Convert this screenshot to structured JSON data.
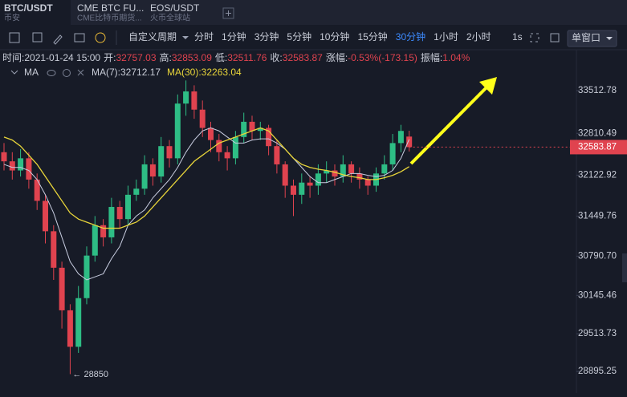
{
  "tabs": [
    {
      "title": "BTC/USDT",
      "sub": "币安"
    },
    {
      "title": "CME BTC FU...",
      "sub": "CME比特币期货..."
    },
    {
      "title": "EOS/USDT",
      "sub": "火币全球站"
    }
  ],
  "toolbar": {
    "custom": "自定义周期",
    "periods": [
      "分时",
      "1分钟",
      "3分钟",
      "5分钟",
      "10分钟",
      "15分钟",
      "30分钟",
      "1小时",
      "2小时"
    ],
    "active": 6,
    "speed": "1s",
    "window": "单窗口"
  },
  "info": [
    {
      "label": "时间:",
      "value": "2021-01-24 15:00"
    },
    {
      "label": "开:",
      "value": "32757.03"
    },
    {
      "label": "高:",
      "value": "32853.09"
    },
    {
      "label": "低:",
      "value": "32511.76"
    },
    {
      "label": "收:",
      "value": "32583.87"
    },
    {
      "label": "涨幅:",
      "value": "-0.53%(-173.15)"
    },
    {
      "label": "振幅:",
      "value": "1.04%"
    }
  ],
  "ma": {
    "title": "MA",
    "ma7": "MA(7):32712.17",
    "ma30": "MA(30):32263.04"
  },
  "chart_data": {
    "type": "candlestick",
    "annotation": "← 28850",
    "up_color": "#2ebd85",
    "down_color": "#e0434f",
    "ylim": [
      28540.15,
      33684.25
    ],
    "yticks": [
      33512.78,
      32810.49,
      32122.92,
      31449.76,
      {
        "value": 30790.7,
        "label": "30790.70"
      },
      30145.46,
      29513.73,
      28895.25
    ],
    "open": [
      32500,
      32350,
      32200,
      32400,
      32050,
      31700,
      31200,
      30600,
      29900,
      29300,
      30100,
      30800,
      31300,
      31100,
      31600,
      31400,
      31800,
      31900,
      32300,
      32100,
      32600,
      32400,
      33300,
      33500,
      33200,
      32900,
      32700,
      32500,
      32400,
      32750,
      33000,
      32850,
      32900,
      32600,
      32300,
      31950,
      31800,
      32000,
      31950,
      32150,
      32200,
      32100,
      32300,
      32150,
      32050,
      31950,
      32150,
      32300,
      32650,
      32757.03
    ],
    "high": [
      32650,
      32500,
      32550,
      32500,
      32150,
      31800,
      31300,
      30700,
      30000,
      30300,
      30950,
      31450,
      31400,
      31750,
      31700,
      31950,
      32050,
      32450,
      32400,
      32750,
      32700,
      33450,
      33680,
      33600,
      33350,
      33000,
      32800,
      32600,
      32850,
      33150,
      33100,
      33000,
      32950,
      32700,
      32350,
      32050,
      32150,
      32100,
      32300,
      32350,
      32300,
      32450,
      32350,
      32250,
      32100,
      32250,
      32450,
      32800,
      32950,
      32853.09
    ],
    "low": [
      32200,
      32050,
      32100,
      31900,
      31550,
      31000,
      30400,
      29600,
      28850,
      29200,
      30000,
      30700,
      30950,
      31000,
      31250,
      31300,
      31700,
      31800,
      31950,
      32000,
      32250,
      32300,
      33100,
      33050,
      32750,
      32500,
      32350,
      32200,
      32300,
      32650,
      32700,
      32700,
      32450,
      32150,
      31750,
      31450,
      31650,
      31750,
      31800,
      32000,
      31950,
      32000,
      32000,
      31900,
      31800,
      31850,
      32050,
      32200,
      32500,
      32511.76
    ],
    "close": [
      32350,
      32200,
      32400,
      32050,
      31700,
      31200,
      30600,
      29900,
      29300,
      30100,
      30800,
      31300,
      31100,
      31600,
      31400,
      31800,
      31900,
      32300,
      32100,
      32600,
      32400,
      33300,
      33500,
      33200,
      32900,
      32700,
      32500,
      32400,
      32750,
      33000,
      32850,
      32900,
      32600,
      32300,
      31950,
      31800,
      32000,
      31950,
      32150,
      32200,
      32100,
      32300,
      32150,
      32050,
      31950,
      32150,
      32300,
      32650,
      32850,
      32583.87
    ],
    "series": [
      {
        "name": "MA(7)",
        "color": "#c8cde0",
        "values": [
          32300,
          32250,
          32250,
          32200,
          32050,
          31800,
          31500,
          31100,
          30700,
          30500,
          30400,
          30450,
          30500,
          30750,
          30950,
          31300,
          31450,
          31550,
          31750,
          31900,
          32050,
          32250,
          32500,
          32700,
          32850,
          32900,
          32850,
          32750,
          32650,
          32650,
          32700,
          32720,
          32720,
          32650,
          32550,
          32400,
          32250,
          32100,
          32000,
          32000,
          32050,
          32100,
          32150,
          32150,
          32120,
          32100,
          32120,
          32200,
          32400,
          32712.17
        ]
      },
      {
        "name": "MA(30)",
        "color": "#e8d53a",
        "values": [
          32750,
          32700,
          32600,
          32450,
          32300,
          32100,
          31900,
          31700,
          31500,
          31400,
          31350,
          31300,
          31250,
          31250,
          31250,
          31300,
          31350,
          31450,
          31600,
          31750,
          31900,
          32050,
          32200,
          32350,
          32450,
          32550,
          32650,
          32700,
          32750,
          32800,
          32850,
          32900,
          32850,
          32700,
          32550,
          32400,
          32300,
          32250,
          32220,
          32200,
          32170,
          32130,
          32100,
          32080,
          32050,
          32050,
          32080,
          32120,
          32180,
          32263.04
        ]
      }
    ]
  }
}
